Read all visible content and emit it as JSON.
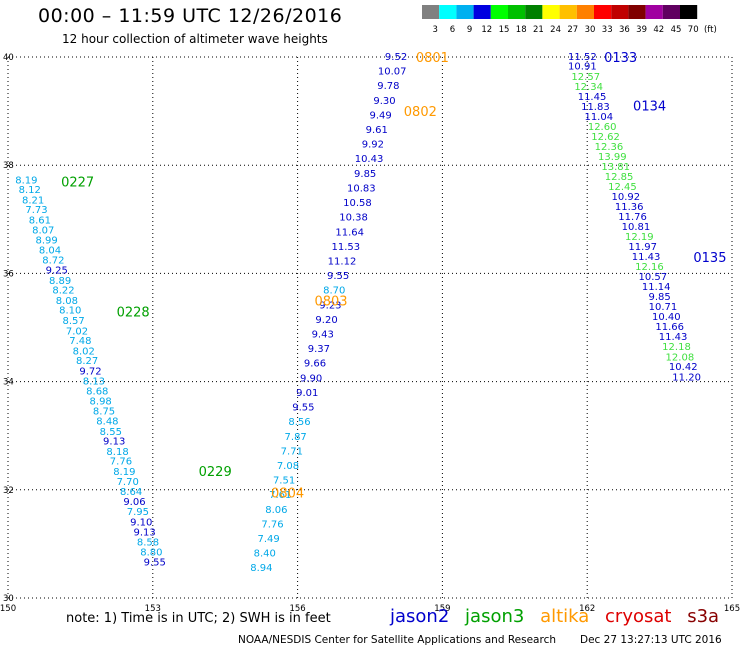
{
  "header": {
    "title": "00:00 – 11:59 UTC 12/26/2016",
    "subtitle": "12 hour collection of altimeter wave heights"
  },
  "colorbar": {
    "labels": [
      "3",
      "6",
      "9",
      "12",
      "15",
      "18",
      "21",
      "24",
      "27",
      "30",
      "33",
      "36",
      "39",
      "42",
      "45",
      "70",
      "(ft)"
    ],
    "colors": [
      "#808080",
      "#00ffff",
      "#00b0f0",
      "#0000e0",
      "#00ff00",
      "#00c000",
      "#008000",
      "#ffff00",
      "#ffc000",
      "#ff8000",
      "#ff0000",
      "#c00000",
      "#800000",
      "#a000a0",
      "#600060",
      "#000000"
    ]
  },
  "footer": {
    "note": "note:  1) Time is in UTC;  2) SWH is in feet",
    "credit": "NOAA/NESDIS Center for Satellite Applications and Research",
    "timestamp": "Dec 27 13:27:13 UTC 2016"
  },
  "legend": [
    {
      "name": "jason2",
      "color": "#0000cc"
    },
    {
      "name": "jason3",
      "color": "#00a000"
    },
    {
      "name": "altika",
      "color": "#ff9900"
    },
    {
      "name": "cryosat",
      "color": "#dd0000"
    },
    {
      "name": "s3a",
      "color": "#880000"
    }
  ],
  "chart_data": {
    "type": "scatter",
    "xlim": [
      150,
      165
    ],
    "ylim": [
      30,
      40
    ],
    "xticks": [
      "150",
      "153",
      "156",
      "159",
      "162",
      "165"
    ],
    "yticks": [
      "30",
      "32",
      "34",
      "36",
      "38",
      "40"
    ],
    "grid": true,
    "tracks": [
      {
        "id": "0227",
        "satellite": "jason3",
        "label_x": 151.1,
        "label_y": 37.7,
        "points": [
          {
            "x": 150.38,
            "y": 37.72,
            "v": "8.19"
          },
          {
            "x": 150.45,
            "y": 37.54,
            "v": "8.12"
          },
          {
            "x": 150.52,
            "y": 37.35,
            "v": "8.21"
          },
          {
            "x": 150.59,
            "y": 37.17,
            "v": "7.73"
          },
          {
            "x": 150.66,
            "y": 36.98,
            "v": "8.61"
          },
          {
            "x": 150.73,
            "y": 36.79,
            "v": "8.07"
          },
          {
            "x": 150.8,
            "y": 36.61,
            "v": "8.99"
          },
          {
            "x": 150.87,
            "y": 36.42,
            "v": "8.04"
          },
          {
            "x": 150.94,
            "y": 36.24,
            "v": "8.72"
          },
          {
            "x": 151.01,
            "y": 36.05,
            "v": "9.25"
          },
          {
            "x": 151.08,
            "y": 35.86,
            "v": "8.89"
          },
          {
            "x": 151.15,
            "y": 35.68,
            "v": "8.22"
          },
          {
            "x": 151.22,
            "y": 35.49,
            "v": "8.08"
          },
          {
            "x": 151.29,
            "y": 35.31,
            "v": "8.10"
          },
          {
            "x": 151.36,
            "y": 35.12,
            "v": "8.57"
          },
          {
            "x": 151.43,
            "y": 34.93,
            "v": "7.02"
          },
          {
            "x": 151.5,
            "y": 34.75,
            "v": "7.48"
          },
          {
            "x": 151.57,
            "y": 34.56,
            "v": "8.02"
          },
          {
            "x": 151.64,
            "y": 34.38,
            "v": "8.27"
          },
          {
            "x": 151.71,
            "y": 34.19,
            "v": "9.72"
          },
          {
            "x": 151.78,
            "y": 34.0,
            "v": "8.13"
          },
          {
            "x": 151.85,
            "y": 33.82,
            "v": "8.68"
          },
          {
            "x": 151.92,
            "y": 33.63,
            "v": "8.98"
          },
          {
            "x": 151.99,
            "y": 33.45,
            "v": "8.75"
          },
          {
            "x": 152.06,
            "y": 33.26,
            "v": "8.48"
          },
          {
            "x": 152.13,
            "y": 33.07,
            "v": "8.55"
          },
          {
            "x": 152.2,
            "y": 32.89,
            "v": "9.13"
          },
          {
            "x": 152.27,
            "y": 32.7,
            "v": "8.18"
          },
          {
            "x": 152.34,
            "y": 32.52,
            "v": "7.76"
          },
          {
            "x": 152.41,
            "y": 32.33,
            "v": "8.19"
          },
          {
            "x": 152.48,
            "y": 32.14,
            "v": "7.70"
          },
          {
            "x": 152.55,
            "y": 31.96,
            "v": "8.64"
          },
          {
            "x": 152.62,
            "y": 31.77,
            "v": "9.06"
          },
          {
            "x": 152.69,
            "y": 31.59,
            "v": "7.95"
          },
          {
            "x": 152.76,
            "y": 31.4,
            "v": "9.10"
          },
          {
            "x": 152.83,
            "y": 31.21,
            "v": "9.13"
          },
          {
            "x": 152.9,
            "y": 31.03,
            "v": "8.58"
          },
          {
            "x": 152.97,
            "y": 30.84,
            "v": "8.80"
          },
          {
            "x": 153.04,
            "y": 30.66,
            "v": "9.55"
          }
        ]
      },
      {
        "id": "0228",
        "satellite": "jason3",
        "label_x": 152.25,
        "label_y": 35.3,
        "points": []
      },
      {
        "id": "0229",
        "satellite": "jason3",
        "label_x": 153.95,
        "label_y": 32.35,
        "points": []
      },
      {
        "id": "0804",
        "satellite": "altika",
        "label_x": 155.45,
        "label_y": 31.95,
        "points": [
          {
            "x": 155.25,
            "y": 30.55,
            "v": "8.94"
          },
          {
            "x": 155.32,
            "y": 30.82,
            "v": "8.40"
          },
          {
            "x": 155.4,
            "y": 31.09,
            "v": "7.49"
          },
          {
            "x": 155.48,
            "y": 31.36,
            "v": "7.76"
          },
          {
            "x": 155.56,
            "y": 31.63,
            "v": "8.06"
          },
          {
            "x": 155.64,
            "y": 31.9,
            "v": "7.61"
          },
          {
            "x": 155.72,
            "y": 32.17,
            "v": "7.51"
          },
          {
            "x": 155.8,
            "y": 32.44,
            "v": "7.08"
          },
          {
            "x": 155.88,
            "y": 32.71,
            "v": "7.71"
          },
          {
            "x": 155.96,
            "y": 32.98,
            "v": "7.87"
          },
          {
            "x": 156.04,
            "y": 33.25,
            "v": "8.56"
          }
        ]
      },
      {
        "id": "0803",
        "satellite": "altika",
        "label_x": 156.35,
        "label_y": 35.5,
        "points": [
          {
            "x": 156.12,
            "y": 33.52,
            "v": "9.55"
          },
          {
            "x": 156.2,
            "y": 33.79,
            "v": "9.01"
          },
          {
            "x": 156.28,
            "y": 34.06,
            "v": "9.90"
          },
          {
            "x": 156.36,
            "y": 34.33,
            "v": "9.66"
          },
          {
            "x": 156.44,
            "y": 34.6,
            "v": "9.37"
          },
          {
            "x": 156.52,
            "y": 34.87,
            "v": "9.43"
          },
          {
            "x": 156.6,
            "y": 35.14,
            "v": "9.20"
          },
          {
            "x": 156.68,
            "y": 35.41,
            "v": "9.23"
          },
          {
            "x": 156.76,
            "y": 35.68,
            "v": "8.70"
          },
          {
            "x": 156.84,
            "y": 35.95,
            "v": "9.55"
          },
          {
            "x": 156.92,
            "y": 36.22,
            "v": "11.12"
          },
          {
            "x": 157.0,
            "y": 36.49,
            "v": "11.53"
          },
          {
            "x": 157.08,
            "y": 36.76,
            "v": "11.64"
          }
        ]
      },
      {
        "id": "0802",
        "satellite": "altika",
        "label_x": 158.2,
        "label_y": 39.0,
        "points": [
          {
            "x": 157.16,
            "y": 37.03,
            "v": "10.38"
          },
          {
            "x": 157.24,
            "y": 37.3,
            "v": "10.58"
          },
          {
            "x": 157.32,
            "y": 37.57,
            "v": "10.83"
          },
          {
            "x": 157.4,
            "y": 37.84,
            "v": "9.85"
          },
          {
            "x": 157.48,
            "y": 38.11,
            "v": "10.43"
          },
          {
            "x": 157.56,
            "y": 38.38,
            "v": "9.92"
          },
          {
            "x": 157.64,
            "y": 38.65,
            "v": "9.61"
          },
          {
            "x": 157.72,
            "y": 38.92,
            "v": "9.49"
          },
          {
            "x": 157.8,
            "y": 39.19,
            "v": "9.30"
          },
          {
            "x": 157.88,
            "y": 39.46,
            "v": "9.78"
          },
          {
            "x": 157.96,
            "y": 39.73,
            "v": "10.07"
          }
        ]
      },
      {
        "id": "0801",
        "satellite": "altika",
        "label_x": 158.45,
        "label_y": 40.0,
        "points": [
          {
            "x": 158.04,
            "y": 40.0,
            "v": "9.52"
          },
          {
            "x": 158.12,
            "y": 40.27,
            "v": "9.71"
          },
          {
            "x": 158.2,
            "y": 40.54,
            "v": "10.21"
          },
          {
            "x": 158.28,
            "y": 40.81,
            "v": "9.64"
          },
          {
            "x": 158.36,
            "y": 41.08,
            "v": "9.49"
          },
          {
            "x": 158.44,
            "y": 41.35,
            "v": "9.21"
          }
        ]
      },
      {
        "id": "0133",
        "satellite": "jason2",
        "label_x": 162.35,
        "label_y": 40.0,
        "points": [
          {
            "x": 161.9,
            "y": 40.0,
            "v": "11.52"
          },
          {
            "x": 161.9,
            "y": 39.82,
            "v": "10.91"
          },
          {
            "x": 161.97,
            "y": 39.63,
            "v": "12.57"
          },
          {
            "x": 162.03,
            "y": 39.45,
            "v": "12.34"
          },
          {
            "x": 162.1,
            "y": 39.26,
            "v": "11.45"
          },
          {
            "x": 162.17,
            "y": 39.08,
            "v": "11.83"
          },
          {
            "x": 162.24,
            "y": 38.89,
            "v": "11.04"
          }
        ]
      },
      {
        "id": "0134",
        "satellite": "jason2",
        "label_x": 162.95,
        "label_y": 39.1,
        "points": [
          {
            "x": 162.31,
            "y": 38.71,
            "v": "12.60"
          },
          {
            "x": 162.38,
            "y": 38.52,
            "v": "12.62"
          },
          {
            "x": 162.45,
            "y": 38.34,
            "v": "12.36"
          },
          {
            "x": 162.52,
            "y": 38.15,
            "v": "13.99"
          },
          {
            "x": 162.59,
            "y": 37.97,
            "v": "13.81"
          },
          {
            "x": 162.66,
            "y": 37.78,
            "v": "12.85"
          },
          {
            "x": 162.73,
            "y": 37.6,
            "v": "12.45"
          },
          {
            "x": 162.8,
            "y": 37.41,
            "v": "10.92"
          },
          {
            "x": 162.87,
            "y": 37.23,
            "v": "11.36"
          },
          {
            "x": 162.94,
            "y": 37.04,
            "v": "11.76"
          },
          {
            "x": 163.01,
            "y": 36.86,
            "v": "10.81"
          },
          {
            "x": 163.08,
            "y": 36.67,
            "v": "12.19"
          },
          {
            "x": 163.15,
            "y": 36.49,
            "v": "11.97"
          }
        ]
      },
      {
        "id": "0135",
        "satellite": "jason2",
        "label_x": 164.2,
        "label_y": 36.3,
        "points": [
          {
            "x": 163.22,
            "y": 36.3,
            "v": "11.43"
          },
          {
            "x": 163.29,
            "y": 36.12,
            "v": "12.16"
          },
          {
            "x": 163.36,
            "y": 35.93,
            "v": "10.57"
          },
          {
            "x": 163.43,
            "y": 35.75,
            "v": "11.14"
          },
          {
            "x": 163.5,
            "y": 35.56,
            "v": "9.85"
          },
          {
            "x": 163.57,
            "y": 35.38,
            "v": "10.71"
          },
          {
            "x": 163.64,
            "y": 35.19,
            "v": "10.40"
          },
          {
            "x": 163.71,
            "y": 35.01,
            "v": "11.66"
          },
          {
            "x": 163.78,
            "y": 34.82,
            "v": "11.43"
          },
          {
            "x": 163.85,
            "y": 34.64,
            "v": "12.18"
          },
          {
            "x": 163.92,
            "y": 34.45,
            "v": "12.08"
          },
          {
            "x": 163.99,
            "y": 34.27,
            "v": "10.42"
          },
          {
            "x": 164.06,
            "y": 34.08,
            "v": "11.20"
          }
        ]
      }
    ]
  }
}
